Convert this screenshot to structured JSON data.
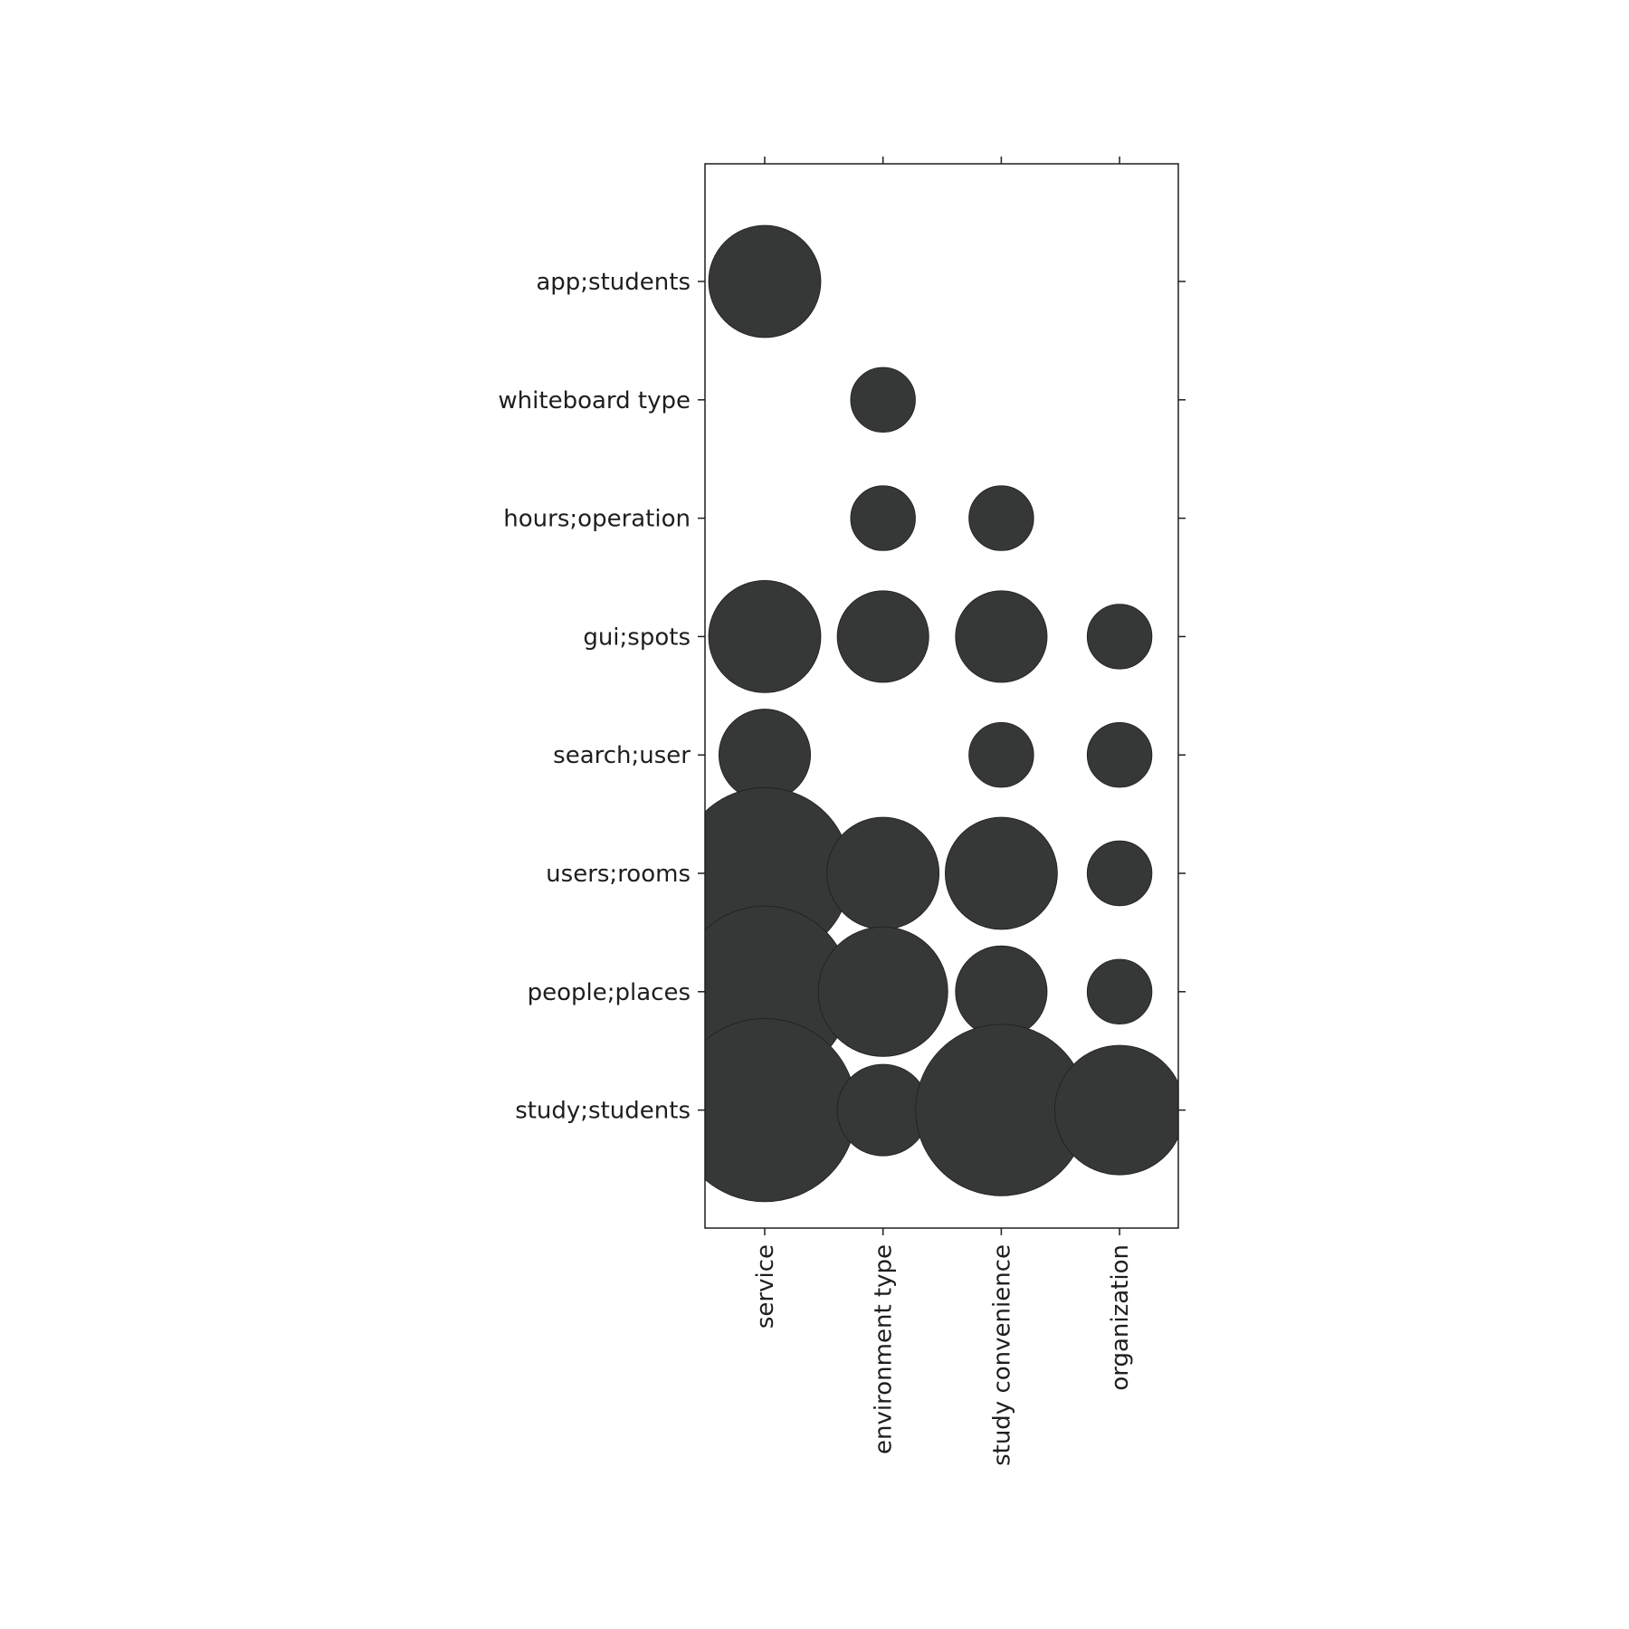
{
  "colors": {
    "bubble": "#363837",
    "axis": "#1e1e1e",
    "background": "#ffffff"
  },
  "chart_data": {
    "type": "scatter",
    "subtype": "bubble-matrix",
    "title": "",
    "xlabel": "",
    "ylabel": "",
    "grid": false,
    "legend": "none",
    "x_categories": [
      "service",
      "environment type",
      "study convenience",
      "organization"
    ],
    "y_categories": [
      "app;students",
      "whiteboard type",
      "hours;operation",
      "gui;spots",
      "search;user",
      "users;rooms",
      "people;places",
      "study;students"
    ],
    "size_encoding": "circle radius proportional to value",
    "points": [
      {
        "x": "service",
        "y": "app;students",
        "value": 3
      },
      {
        "x": "environment type",
        "y": "whiteboard type",
        "value": 1
      },
      {
        "x": "environment type",
        "y": "hours;operation",
        "value": 1
      },
      {
        "x": "study convenience",
        "y": "hours;operation",
        "value": 1
      },
      {
        "x": "service",
        "y": "gui;spots",
        "value": 3
      },
      {
        "x": "environment type",
        "y": "gui;spots",
        "value": 2
      },
      {
        "x": "study convenience",
        "y": "gui;spots",
        "value": 2
      },
      {
        "x": "organization",
        "y": "gui;spots",
        "value": 1
      },
      {
        "x": "service",
        "y": "search;user",
        "value": 2
      },
      {
        "x": "study convenience",
        "y": "search;user",
        "value": 1
      },
      {
        "x": "organization",
        "y": "search;user",
        "value": 1
      },
      {
        "x": "service",
        "y": "users;rooms",
        "value": 7
      },
      {
        "x": "environment type",
        "y": "users;rooms",
        "value": 3
      },
      {
        "x": "study convenience",
        "y": "users;rooms",
        "value": 3
      },
      {
        "x": "organization",
        "y": "users;rooms",
        "value": 1
      },
      {
        "x": "service",
        "y": "people;places",
        "value": 7
      },
      {
        "x": "environment type",
        "y": "people;places",
        "value": 4
      },
      {
        "x": "study convenience",
        "y": "people;places",
        "value": 2
      },
      {
        "x": "organization",
        "y": "people;places",
        "value": 1
      },
      {
        "x": "service",
        "y": "study;students",
        "value": 8
      },
      {
        "x": "environment type",
        "y": "study;students",
        "value": 2
      },
      {
        "x": "study convenience",
        "y": "study;students",
        "value": 7
      },
      {
        "x": "organization",
        "y": "study;students",
        "value": 4
      }
    ]
  }
}
